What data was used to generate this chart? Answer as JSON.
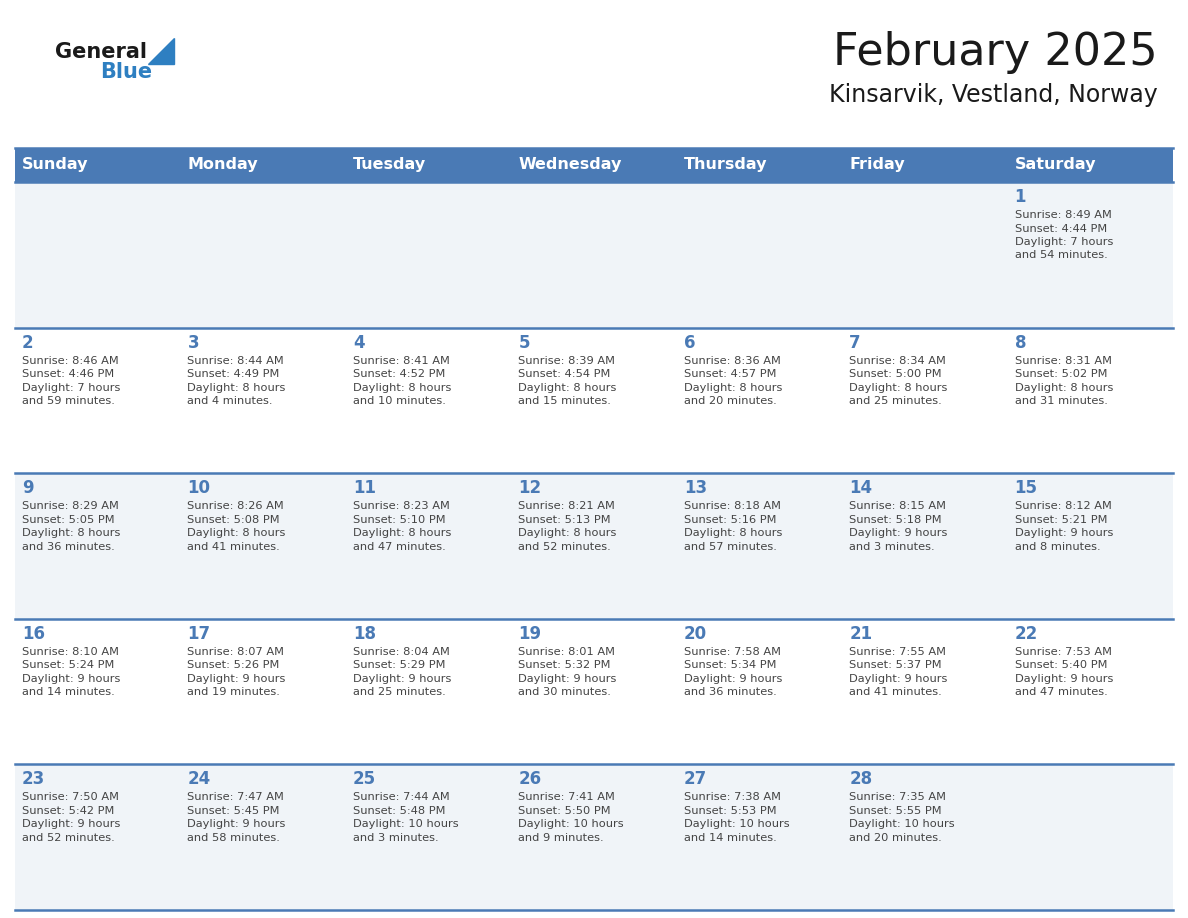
{
  "title": "February 2025",
  "subtitle": "Kinsarvik, Vestland, Norway",
  "header_bg_color": "#4a7ab5",
  "header_text_color": "#ffffff",
  "day_names": [
    "Sunday",
    "Monday",
    "Tuesday",
    "Wednesday",
    "Thursday",
    "Friday",
    "Saturday"
  ],
  "cell_bg_light": "#f0f4f8",
  "cell_bg_white": "#ffffff",
  "cell_border_color": "#4a7ab5",
  "day_number_color": "#4a7ab5",
  "info_text_color": "#444444",
  "title_color": "#1a1a1a",
  "subtitle_color": "#1a1a1a",
  "logo_general_color": "#1a1a1a",
  "logo_blue_color": "#2e7fc1",
  "weeks": [
    [
      {
        "day": null,
        "info": ""
      },
      {
        "day": null,
        "info": ""
      },
      {
        "day": null,
        "info": ""
      },
      {
        "day": null,
        "info": ""
      },
      {
        "day": null,
        "info": ""
      },
      {
        "day": null,
        "info": ""
      },
      {
        "day": 1,
        "info": "Sunrise: 8:49 AM\nSunset: 4:44 PM\nDaylight: 7 hours\nand 54 minutes."
      }
    ],
    [
      {
        "day": 2,
        "info": "Sunrise: 8:46 AM\nSunset: 4:46 PM\nDaylight: 7 hours\nand 59 minutes."
      },
      {
        "day": 3,
        "info": "Sunrise: 8:44 AM\nSunset: 4:49 PM\nDaylight: 8 hours\nand 4 minutes."
      },
      {
        "day": 4,
        "info": "Sunrise: 8:41 AM\nSunset: 4:52 PM\nDaylight: 8 hours\nand 10 minutes."
      },
      {
        "day": 5,
        "info": "Sunrise: 8:39 AM\nSunset: 4:54 PM\nDaylight: 8 hours\nand 15 minutes."
      },
      {
        "day": 6,
        "info": "Sunrise: 8:36 AM\nSunset: 4:57 PM\nDaylight: 8 hours\nand 20 minutes."
      },
      {
        "day": 7,
        "info": "Sunrise: 8:34 AM\nSunset: 5:00 PM\nDaylight: 8 hours\nand 25 minutes."
      },
      {
        "day": 8,
        "info": "Sunrise: 8:31 AM\nSunset: 5:02 PM\nDaylight: 8 hours\nand 31 minutes."
      }
    ],
    [
      {
        "day": 9,
        "info": "Sunrise: 8:29 AM\nSunset: 5:05 PM\nDaylight: 8 hours\nand 36 minutes."
      },
      {
        "day": 10,
        "info": "Sunrise: 8:26 AM\nSunset: 5:08 PM\nDaylight: 8 hours\nand 41 minutes."
      },
      {
        "day": 11,
        "info": "Sunrise: 8:23 AM\nSunset: 5:10 PM\nDaylight: 8 hours\nand 47 minutes."
      },
      {
        "day": 12,
        "info": "Sunrise: 8:21 AM\nSunset: 5:13 PM\nDaylight: 8 hours\nand 52 minutes."
      },
      {
        "day": 13,
        "info": "Sunrise: 8:18 AM\nSunset: 5:16 PM\nDaylight: 8 hours\nand 57 minutes."
      },
      {
        "day": 14,
        "info": "Sunrise: 8:15 AM\nSunset: 5:18 PM\nDaylight: 9 hours\nand 3 minutes."
      },
      {
        "day": 15,
        "info": "Sunrise: 8:12 AM\nSunset: 5:21 PM\nDaylight: 9 hours\nand 8 minutes."
      }
    ],
    [
      {
        "day": 16,
        "info": "Sunrise: 8:10 AM\nSunset: 5:24 PM\nDaylight: 9 hours\nand 14 minutes."
      },
      {
        "day": 17,
        "info": "Sunrise: 8:07 AM\nSunset: 5:26 PM\nDaylight: 9 hours\nand 19 minutes."
      },
      {
        "day": 18,
        "info": "Sunrise: 8:04 AM\nSunset: 5:29 PM\nDaylight: 9 hours\nand 25 minutes."
      },
      {
        "day": 19,
        "info": "Sunrise: 8:01 AM\nSunset: 5:32 PM\nDaylight: 9 hours\nand 30 minutes."
      },
      {
        "day": 20,
        "info": "Sunrise: 7:58 AM\nSunset: 5:34 PM\nDaylight: 9 hours\nand 36 minutes."
      },
      {
        "day": 21,
        "info": "Sunrise: 7:55 AM\nSunset: 5:37 PM\nDaylight: 9 hours\nand 41 minutes."
      },
      {
        "day": 22,
        "info": "Sunrise: 7:53 AM\nSunset: 5:40 PM\nDaylight: 9 hours\nand 47 minutes."
      }
    ],
    [
      {
        "day": 23,
        "info": "Sunrise: 7:50 AM\nSunset: 5:42 PM\nDaylight: 9 hours\nand 52 minutes."
      },
      {
        "day": 24,
        "info": "Sunrise: 7:47 AM\nSunset: 5:45 PM\nDaylight: 9 hours\nand 58 minutes."
      },
      {
        "day": 25,
        "info": "Sunrise: 7:44 AM\nSunset: 5:48 PM\nDaylight: 10 hours\nand 3 minutes."
      },
      {
        "day": 26,
        "info": "Sunrise: 7:41 AM\nSunset: 5:50 PM\nDaylight: 10 hours\nand 9 minutes."
      },
      {
        "day": 27,
        "info": "Sunrise: 7:38 AM\nSunset: 5:53 PM\nDaylight: 10 hours\nand 14 minutes."
      },
      {
        "day": 28,
        "info": "Sunrise: 7:35 AM\nSunset: 5:55 PM\nDaylight: 10 hours\nand 20 minutes."
      },
      {
        "day": null,
        "info": ""
      }
    ]
  ]
}
